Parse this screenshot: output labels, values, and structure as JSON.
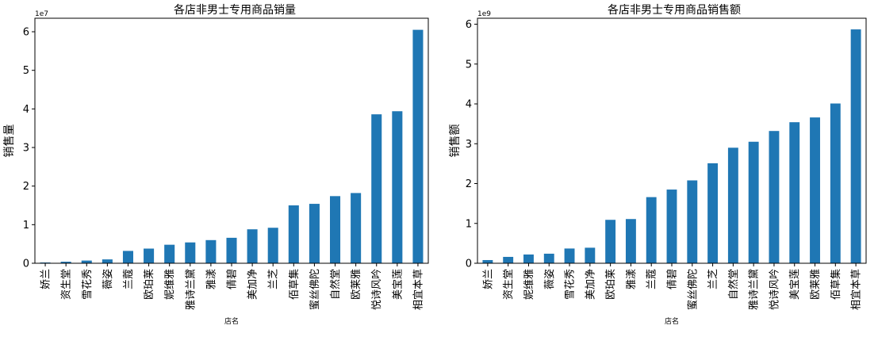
{
  "accent_color": "#1f77b4",
  "chart_data": [
    {
      "type": "bar",
      "title": "各店非男士专用商品销量",
      "xlabel": "店名",
      "ylabel": "销售量",
      "y_multiplier": "1e7",
      "ylim": [
        0,
        6.35
      ],
      "yticks": [
        0,
        1,
        2,
        3,
        4,
        5,
        6
      ],
      "categories": [
        "娇兰",
        "资生堂",
        "雪花秀",
        "薇姿",
        "兰蔻",
        "欧珀莱",
        "妮维雅",
        "雅诗兰黛",
        "雅漾",
        "倩碧",
        "美加净",
        "兰芝",
        "佰草集",
        "蜜丝佛陀",
        "自然堂",
        "欧莱雅",
        "悦诗风吟",
        "美宝莲",
        "相宜本草"
      ],
      "values": [
        0.02,
        0.04,
        0.07,
        0.1,
        0.32,
        0.38,
        0.48,
        0.54,
        0.6,
        0.66,
        0.88,
        0.92,
        1.5,
        1.54,
        1.74,
        1.82,
        3.86,
        3.94,
        6.05
      ]
    },
    {
      "type": "bar",
      "title": "各店非男士专用商品销售额",
      "xlabel": "店名",
      "ylabel": "销售额",
      "y_multiplier": "1e9",
      "ylim": [
        0,
        6.15
      ],
      "yticks": [
        0,
        1,
        2,
        3,
        4,
        5,
        6
      ],
      "categories": [
        "娇兰",
        "资生堂",
        "妮维雅",
        "薇姿",
        "雪花秀",
        "美加净",
        "欧珀莱",
        "雅漾",
        "兰蔻",
        "倩碧",
        "蜜丝佛陀",
        "兰芝",
        "自然堂",
        "雅诗兰黛",
        "悦诗风吟",
        "美宝莲",
        "欧莱雅",
        "佰草集",
        "相宜本草"
      ],
      "values": [
        0.08,
        0.16,
        0.22,
        0.24,
        0.37,
        0.39,
        1.09,
        1.11,
        1.66,
        1.85,
        2.08,
        2.51,
        2.9,
        3.05,
        3.32,
        3.54,
        3.66,
        4.01,
        5.87
      ]
    }
  ]
}
